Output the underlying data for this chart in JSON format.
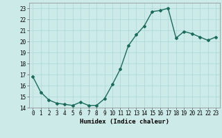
{
  "x": [
    0,
    1,
    2,
    3,
    4,
    5,
    6,
    7,
    8,
    9,
    10,
    11,
    12,
    13,
    14,
    15,
    16,
    17,
    18,
    19,
    20,
    21,
    22,
    23
  ],
  "y": [
    16.8,
    15.4,
    14.7,
    14.4,
    14.3,
    14.2,
    14.5,
    14.2,
    14.2,
    14.8,
    16.1,
    17.5,
    19.6,
    20.6,
    21.4,
    22.7,
    22.8,
    23.0,
    20.3,
    20.9,
    20.7,
    20.4,
    20.1,
    20.4
  ],
  "line_color": "#1a6b5a",
  "marker": "D",
  "marker_size": 2,
  "bg_color": "#cceae7",
  "grid_color": "#aad8d4",
  "xlabel": "Humidex (Indice chaleur)",
  "xlim": [
    -0.5,
    23.5
  ],
  "ylim": [
    14,
    23.5
  ],
  "yticks": [
    14,
    15,
    16,
    17,
    18,
    19,
    20,
    21,
    22,
    23
  ],
  "xticks": [
    0,
    1,
    2,
    3,
    4,
    5,
    6,
    7,
    8,
    9,
    10,
    11,
    12,
    13,
    14,
    15,
    16,
    17,
    18,
    19,
    20,
    21,
    22,
    23
  ],
  "xlabel_fontsize": 6.5,
  "tick_fontsize": 5.5,
  "linewidth": 1.0
}
